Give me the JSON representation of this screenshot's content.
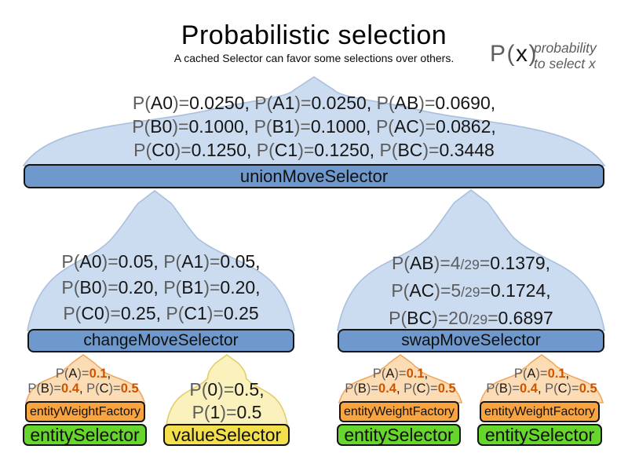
{
  "header": {
    "title": "Probabilistic selection",
    "subtitle": "A cached Selector can favor some selections over others."
  },
  "legend": {
    "symbol": [
      [
        "g",
        "P("
      ],
      [
        "k",
        "x"
      ],
      [
        "g",
        ")"
      ]
    ],
    "note_lines": [
      "probability",
      "to select x"
    ]
  },
  "selectors": {
    "union": {
      "label": "unionMoveSelector",
      "lines": [
        [
          [
            "g",
            "P("
          ],
          [
            "k",
            "A0"
          ],
          [
            "g",
            ")="
          ],
          [
            "k",
            "0.0250, "
          ],
          [
            "g",
            "P("
          ],
          [
            "k",
            "A1"
          ],
          [
            "g",
            ")="
          ],
          [
            "k",
            "0.0250, "
          ],
          [
            "g",
            "P("
          ],
          [
            "k",
            "AB"
          ],
          [
            "g",
            ")="
          ],
          [
            "k",
            "0.0690,"
          ]
        ],
        [
          [
            "g",
            "P("
          ],
          [
            "k",
            "B0"
          ],
          [
            "g",
            ")="
          ],
          [
            "k",
            "0.1000, "
          ],
          [
            "g",
            "P("
          ],
          [
            "k",
            "B1"
          ],
          [
            "g",
            ")="
          ],
          [
            "k",
            "0.1000, "
          ],
          [
            "g",
            "P("
          ],
          [
            "k",
            "AC"
          ],
          [
            "g",
            ")="
          ],
          [
            "k",
            "0.0862,"
          ]
        ],
        [
          [
            "g",
            "P("
          ],
          [
            "k",
            "C0"
          ],
          [
            "g",
            ")="
          ],
          [
            "k",
            "0.1250, "
          ],
          [
            "g",
            "P("
          ],
          [
            "k",
            "C1"
          ],
          [
            "g",
            ")="
          ],
          [
            "k",
            "0.1250, "
          ],
          [
            "g",
            "P("
          ],
          [
            "k",
            "BC"
          ],
          [
            "g",
            ")="
          ],
          [
            "k",
            "0.3448"
          ]
        ]
      ]
    },
    "change": {
      "label": "changeMoveSelector",
      "lines": [
        [
          [
            "g",
            "P("
          ],
          [
            "k",
            "A0"
          ],
          [
            "g",
            ")="
          ],
          [
            "k",
            "0.05, "
          ],
          [
            "g",
            "P("
          ],
          [
            "k",
            "A1"
          ],
          [
            "g",
            ")="
          ],
          [
            "k",
            "0.05,"
          ]
        ],
        [
          [
            "g",
            "P("
          ],
          [
            "k",
            "B0"
          ],
          [
            "g",
            ")="
          ],
          [
            "k",
            "0.20, "
          ],
          [
            "g",
            "P("
          ],
          [
            "k",
            "B1"
          ],
          [
            "g",
            ")="
          ],
          [
            "k",
            "0.20,"
          ]
        ],
        [
          [
            "g",
            "P("
          ],
          [
            "k",
            "C0"
          ],
          [
            "g",
            ")="
          ],
          [
            "k",
            "0.25, "
          ],
          [
            "g",
            "P("
          ],
          [
            "k",
            "C1"
          ],
          [
            "g",
            ")="
          ],
          [
            "k",
            "0.25"
          ]
        ]
      ]
    },
    "swap": {
      "label": "swapMoveSelector",
      "lines": [
        [
          [
            "g",
            "P("
          ],
          [
            "k",
            "AB"
          ],
          [
            "g",
            ")="
          ],
          [
            "g",
            "4"
          ],
          [
            "gs",
            "/29"
          ],
          [
            "g",
            "="
          ],
          [
            "k",
            "0.1379,"
          ]
        ],
        [
          [
            "g",
            "P("
          ],
          [
            "k",
            "AC"
          ],
          [
            "g",
            ")="
          ],
          [
            "g",
            "5"
          ],
          [
            "gs",
            "/29"
          ],
          [
            "g",
            "="
          ],
          [
            "k",
            "0.1724,"
          ]
        ],
        [
          [
            "g",
            "P("
          ],
          [
            "k",
            "BC"
          ],
          [
            "g",
            ")="
          ],
          [
            "g",
            "20"
          ],
          [
            "gs",
            "/29"
          ],
          [
            "g",
            "="
          ],
          [
            "k",
            "0.6897"
          ]
        ]
      ]
    },
    "entity_weight": {
      "label": "entityWeightFactory",
      "lines": [
        [
          [
            "g",
            "P("
          ],
          [
            "k",
            "A"
          ],
          [
            "g",
            ")="
          ],
          [
            "o",
            "0.1"
          ],
          [
            "k",
            ","
          ]
        ],
        [
          [
            "g",
            "P("
          ],
          [
            "k",
            "B"
          ],
          [
            "g",
            ")="
          ],
          [
            "o",
            "0.4"
          ],
          [
            "k",
            ", "
          ],
          [
            "g",
            "P("
          ],
          [
            "k",
            "C"
          ],
          [
            "g",
            ")="
          ],
          [
            "o",
            "0.5"
          ]
        ]
      ]
    },
    "entity": {
      "label": "entitySelector"
    },
    "value": {
      "label": "valueSelector",
      "lines": [
        [
          [
            "g",
            "P("
          ],
          [
            "k",
            "0"
          ],
          [
            "g",
            ")="
          ],
          [
            "k",
            "0.5,"
          ]
        ],
        [
          [
            "g",
            "P("
          ],
          [
            "k",
            "1"
          ],
          [
            "g",
            ")="
          ],
          [
            "k",
            "0.5"
          ]
        ]
      ]
    }
  },
  "colors": {
    "bar_blue": "#6f99cc",
    "bar_orange": "#f9a43f",
    "bar_green": "#66d52c",
    "bar_yellow": "#f4e04d",
    "bar_border": "#141414",
    "dome_blue_fill": "#ccdcf0",
    "dome_blue_stroke": "#a9c0dd",
    "dome_orange_fill": "#fcdcb4",
    "dome_orange_stroke": "#f0a860",
    "dome_yellow_fill": "#faf1bc",
    "dome_yellow_stroke": "#e2cf6a",
    "text_gray": "#5d5d5d",
    "text_black": "#161616",
    "value_orange": "#cc5500"
  }
}
